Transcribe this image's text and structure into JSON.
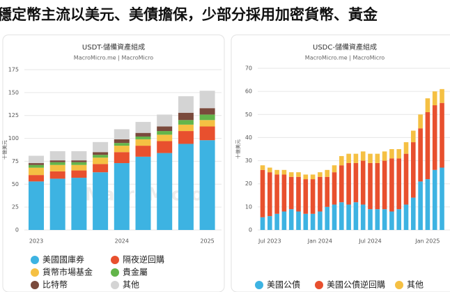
{
  "banner": "穩定幣主流以美元、美債擔保，少部分採用加密貨幣、黃金",
  "chart_data": [
    {
      "type": "bar",
      "stacked": true,
      "title": "USDT-儲備資產組成",
      "subtitle": "MacroMicro.me | MacroMicro",
      "watermark": "MacroMicro",
      "y_label": "十億美元",
      "ylim": [
        0,
        175
      ],
      "yticks": [
        0,
        25,
        50,
        75,
        100,
        125,
        150,
        175
      ],
      "grid": true,
      "categories": [
        "2023",
        null,
        null,
        null,
        "2024",
        null,
        null,
        null,
        "2025"
      ],
      "series": [
        {
          "name": "美國國庫券",
          "color": "#3db3e2",
          "values": [
            53,
            56,
            57,
            63,
            73,
            80,
            84,
            94,
            98
          ]
        },
        {
          "name": "隔夜逆回購",
          "color": "#e8502e",
          "values": [
            7,
            8,
            8,
            9,
            12,
            12,
            13,
            14,
            15
          ]
        },
        {
          "name": "貨幣市場基金",
          "color": "#f5c043",
          "values": [
            8,
            7,
            6,
            7,
            7,
            7,
            7,
            7,
            7
          ]
        },
        {
          "name": "貴金屬",
          "color": "#63b54a",
          "values": [
            3,
            3,
            3,
            3,
            3,
            3,
            4,
            5,
            6
          ]
        },
        {
          "name": "比特幣",
          "color": "#7a4a3c",
          "values": [
            2,
            2,
            2,
            3,
            4,
            4,
            5,
            8,
            7
          ]
        },
        {
          "name": "其他",
          "color": "#d4d4d4",
          "values": [
            8,
            10,
            10,
            11,
            11,
            12,
            13,
            18,
            19
          ]
        }
      ]
    },
    {
      "type": "bar",
      "stacked": true,
      "title": "USDC-儲備資產組成",
      "subtitle": "MacroMicro.me | MacroMicro",
      "y_label": "十億美元",
      "ylim": [
        0,
        70
      ],
      "yticks": [
        0,
        10,
        20,
        30,
        40,
        50,
        60,
        70
      ],
      "grid": true,
      "categories": [
        null,
        "Jul 2023",
        null,
        null,
        null,
        null,
        null,
        null,
        "Jan 2024",
        null,
        null,
        null,
        null,
        null,
        null,
        "Jul 2024",
        null,
        null,
        null,
        null,
        null,
        null,
        null,
        "Jan 2025",
        null,
        null
      ],
      "series": [
        {
          "name": "美國公債",
          "color": "#3db3e2",
          "values": [
            5.5,
            6,
            7,
            8,
            9,
            8,
            7,
            7,
            8,
            10,
            11,
            12,
            11,
            12,
            11,
            9,
            9,
            9,
            8,
            9,
            11,
            14,
            21,
            22,
            26,
            27
          ]
        },
        {
          "name": "美國公債逆回購",
          "color": "#e8502e",
          "values": [
            20.5,
            19,
            17,
            16,
            14,
            15,
            15,
            15,
            15,
            13,
            14,
            16,
            18,
            17,
            19,
            20,
            20,
            21,
            23,
            22,
            22,
            24,
            23,
            29,
            28,
            28
          ]
        },
        {
          "name": "其他",
          "color": "#f5c043",
          "values": [
            2,
            2,
            2,
            2,
            2,
            2,
            2,
            2,
            2,
            3,
            3,
            4,
            4,
            4,
            4,
            4,
            4,
            4,
            4,
            4,
            5,
            5,
            6,
            6,
            6,
            6
          ]
        }
      ]
    }
  ]
}
